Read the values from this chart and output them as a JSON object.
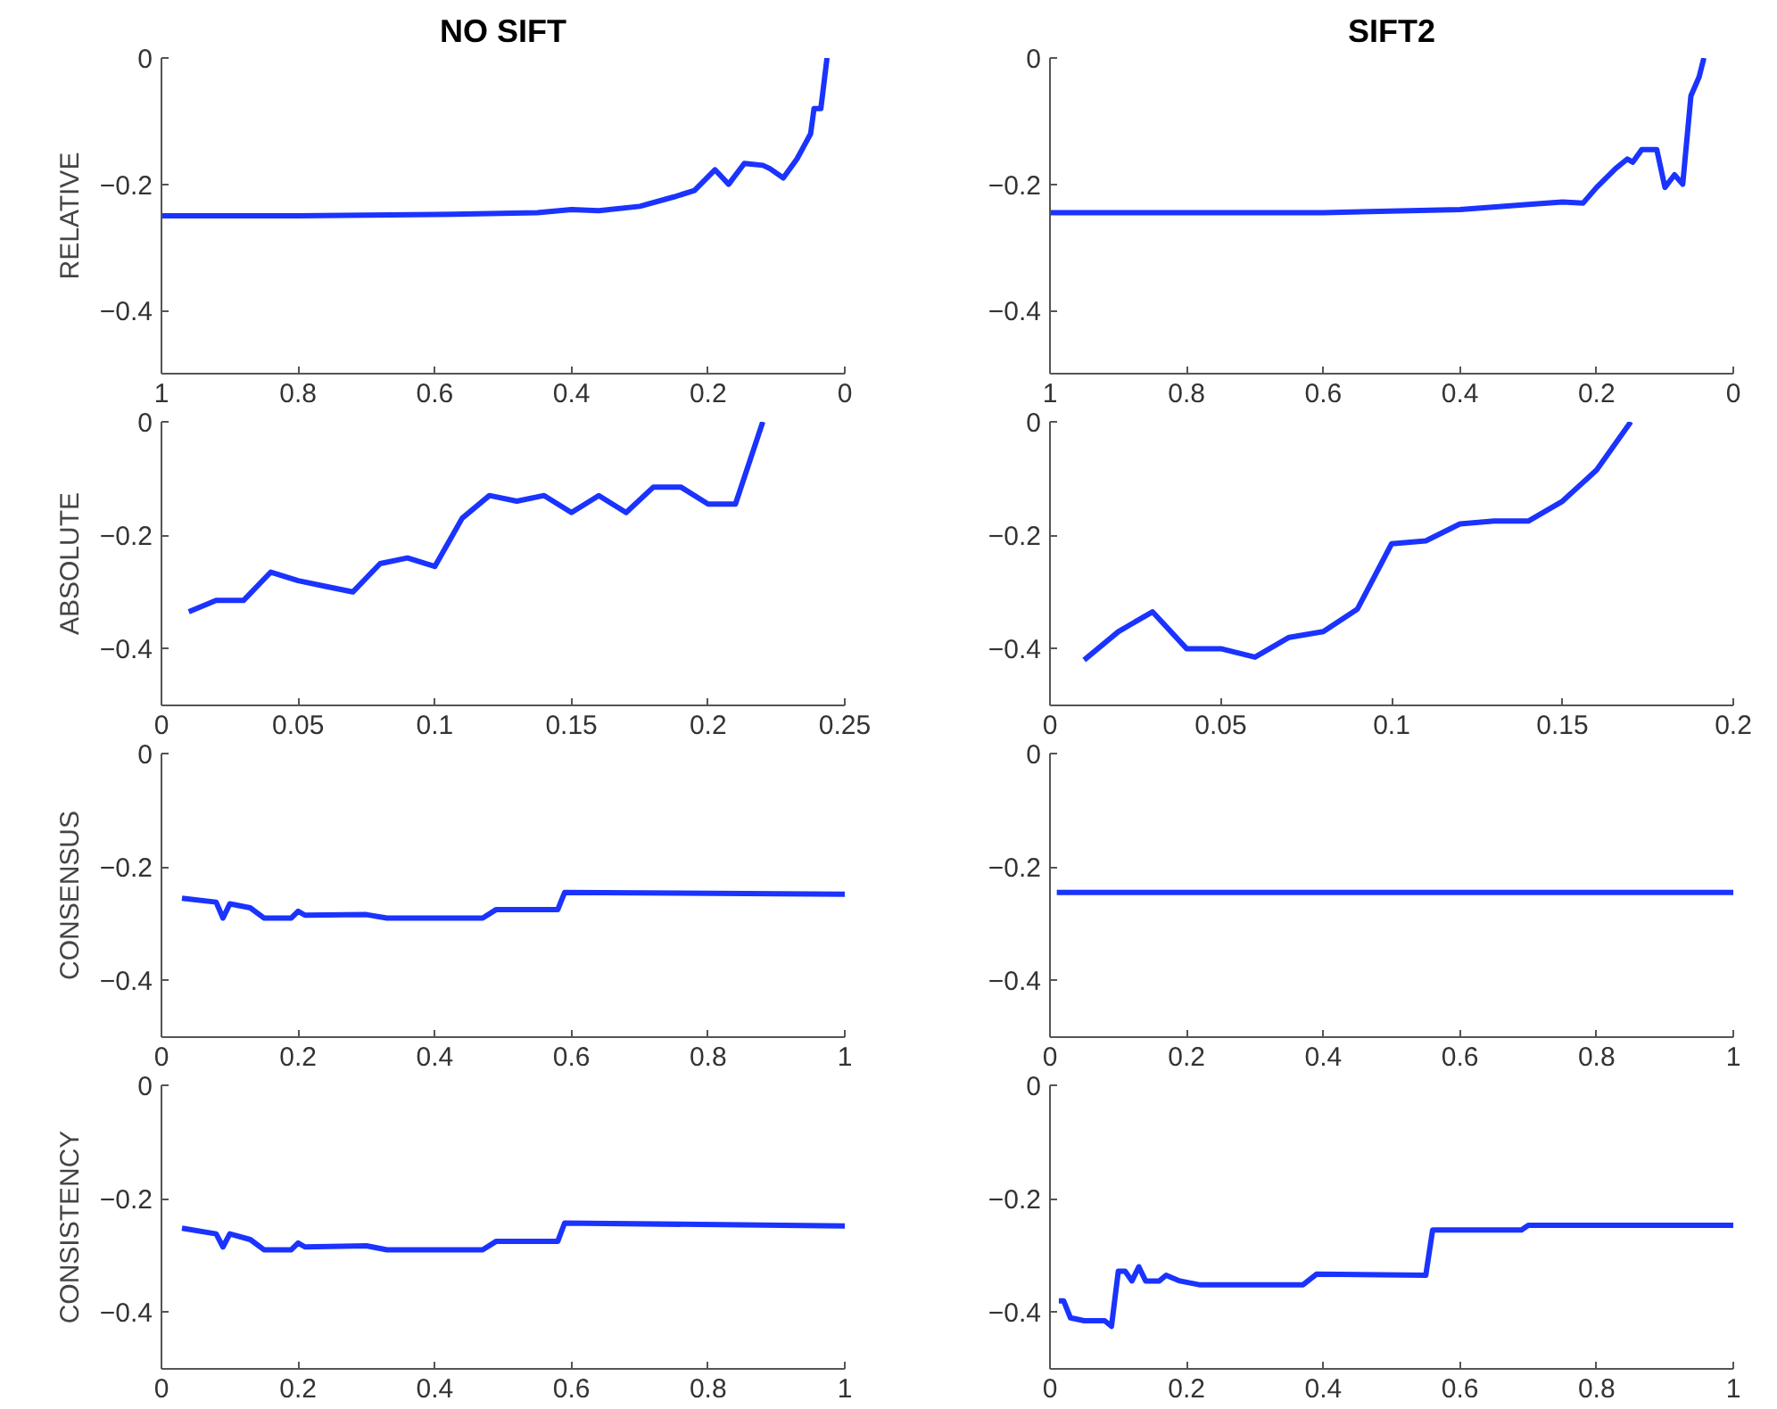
{
  "chart_data": [
    {
      "type": "line",
      "title": "NO SIFT",
      "ylabel": "RELATIVE",
      "xlim": [
        1,
        0
      ],
      "xticks": [
        1,
        0.8,
        0.6,
        0.4,
        0.2,
        0
      ],
      "ylim": [
        -0.5,
        0
      ],
      "yticks": [
        0,
        -0.2,
        -0.4
      ],
      "grid": false,
      "x": [
        1,
        0.8,
        0.6,
        0.45,
        0.4,
        0.36,
        0.3,
        0.25,
        0.22,
        0.19,
        0.17,
        0.147,
        0.12,
        0.11,
        0.09,
        0.07,
        0.06,
        0.05,
        0.045,
        0.035,
        0.026
      ],
      "series": [
        {
          "color": "#1a33ff",
          "values": [
            -0.25,
            -0.25,
            -0.248,
            -0.245,
            -0.24,
            -0.242,
            -0.235,
            -0.22,
            -0.21,
            -0.177,
            -0.2,
            -0.167,
            -0.17,
            -0.175,
            -0.19,
            -0.16,
            -0.14,
            -0.12,
            -0.08,
            -0.08,
            0
          ]
        }
      ]
    },
    {
      "type": "line",
      "title": "SIFT2",
      "xlim": [
        1,
        0
      ],
      "xticks": [
        1,
        0.8,
        0.6,
        0.4,
        0.2,
        0
      ],
      "ylim": [
        -0.5,
        0
      ],
      "yticks": [
        0,
        -0.2,
        -0.4
      ],
      "grid": false,
      "x": [
        1,
        0.6,
        0.4,
        0.3,
        0.25,
        0.22,
        0.2,
        0.172,
        0.155,
        0.147,
        0.134,
        0.112,
        0.1,
        0.086,
        0.074,
        0.062,
        0.05,
        0.043
      ],
      "series": [
        {
          "color": "#1a33ff",
          "values": [
            -0.245,
            -0.245,
            -0.24,
            -0.232,
            -0.228,
            -0.23,
            -0.205,
            -0.175,
            -0.16,
            -0.165,
            -0.145,
            -0.145,
            -0.205,
            -0.185,
            -0.2,
            -0.06,
            -0.03,
            0
          ]
        }
      ]
    },
    {
      "type": "line",
      "ylabel": "ABSOLUTE",
      "xlim": [
        0,
        0.25
      ],
      "xticks": [
        0,
        0.05,
        0.1,
        0.15,
        0.2,
        0.25
      ],
      "ylim": [
        -0.5,
        0
      ],
      "yticks": [
        0,
        -0.2,
        -0.4
      ],
      "grid": false,
      "x": [
        0.01,
        0.02,
        0.03,
        0.04,
        0.05,
        0.06,
        0.07,
        0.08,
        0.09,
        0.1,
        0.11,
        0.12,
        0.13,
        0.14,
        0.15,
        0.16,
        0.17,
        0.18,
        0.19,
        0.2,
        0.21,
        0.22
      ],
      "series": [
        {
          "color": "#1a33ff",
          "values": [
            -0.335,
            -0.315,
            -0.315,
            -0.265,
            -0.28,
            -0.29,
            -0.3,
            -0.25,
            -0.24,
            -0.255,
            -0.17,
            -0.13,
            -0.14,
            -0.13,
            -0.16,
            -0.13,
            -0.16,
            -0.115,
            -0.115,
            -0.145,
            -0.145,
            0
          ]
        }
      ]
    },
    {
      "type": "line",
      "xlim": [
        0,
        0.2
      ],
      "xticks": [
        0,
        0.05,
        0.1,
        0.15,
        0.2
      ],
      "ylim": [
        -0.5,
        0
      ],
      "yticks": [
        0,
        -0.2,
        -0.4
      ],
      "grid": false,
      "x": [
        0.01,
        0.02,
        0.03,
        0.04,
        0.05,
        0.06,
        0.07,
        0.08,
        0.09,
        0.1,
        0.11,
        0.12,
        0.13,
        0.14,
        0.15,
        0.16,
        0.17
      ],
      "series": [
        {
          "color": "#1a33ff",
          "values": [
            -0.42,
            -0.37,
            -0.335,
            -0.4,
            -0.4,
            -0.415,
            -0.38,
            -0.37,
            -0.33,
            -0.215,
            -0.21,
            -0.18,
            -0.175,
            -0.175,
            -0.14,
            -0.085,
            0
          ]
        }
      ]
    },
    {
      "type": "line",
      "ylabel": "CONSENSUS",
      "xlim": [
        0,
        1
      ],
      "xticks": [
        0,
        0.2,
        0.4,
        0.6,
        0.8,
        1
      ],
      "ylim": [
        -0.5,
        0
      ],
      "yticks": [
        0,
        -0.2,
        -0.4
      ],
      "grid": false,
      "x": [
        0.03,
        0.08,
        0.09,
        0.1,
        0.13,
        0.15,
        0.19,
        0.2,
        0.21,
        0.3,
        0.33,
        0.47,
        0.49,
        0.58,
        0.59,
        1
      ],
      "series": [
        {
          "color": "#1a33ff",
          "values": [
            -0.255,
            -0.262,
            -0.29,
            -0.265,
            -0.272,
            -0.29,
            -0.29,
            -0.278,
            -0.285,
            -0.284,
            -0.29,
            -0.29,
            -0.275,
            -0.275,
            -0.245,
            -0.248
          ]
        }
      ]
    },
    {
      "type": "line",
      "xlim": [
        0,
        1
      ],
      "xticks": [
        0,
        0.2,
        0.4,
        0.6,
        0.8,
        1
      ],
      "ylim": [
        -0.5,
        0
      ],
      "yticks": [
        0,
        -0.2,
        -0.4
      ],
      "grid": false,
      "x": [
        0.01,
        1
      ],
      "series": [
        {
          "color": "#1a33ff",
          "values": [
            -0.245,
            -0.245
          ]
        }
      ]
    },
    {
      "type": "line",
      "ylabel": "CONSISTENCY",
      "xlim": [
        0,
        1
      ],
      "xticks": [
        0,
        0.2,
        0.4,
        0.6,
        0.8,
        1
      ],
      "ylim": [
        -0.5,
        0
      ],
      "yticks": [
        0,
        -0.2,
        -0.4
      ],
      "grid": false,
      "x": [
        0.03,
        0.08,
        0.09,
        0.1,
        0.13,
        0.15,
        0.19,
        0.2,
        0.21,
        0.3,
        0.33,
        0.47,
        0.49,
        0.58,
        0.59,
        1
      ],
      "series": [
        {
          "color": "#1a33ff",
          "values": [
            -0.252,
            -0.262,
            -0.285,
            -0.262,
            -0.272,
            -0.29,
            -0.29,
            -0.278,
            -0.285,
            -0.283,
            -0.29,
            -0.29,
            -0.275,
            -0.275,
            -0.243,
            -0.248
          ]
        }
      ]
    },
    {
      "type": "line",
      "xlim": [
        0,
        1
      ],
      "xticks": [
        0,
        0.2,
        0.4,
        0.6,
        0.8,
        1
      ],
      "ylim": [
        -0.5,
        0
      ],
      "yticks": [
        0,
        -0.2,
        -0.4
      ],
      "grid": false,
      "x": [
        0.013,
        0.02,
        0.03,
        0.05,
        0.08,
        0.09,
        0.1,
        0.11,
        0.12,
        0.13,
        0.14,
        0.16,
        0.17,
        0.19,
        0.22,
        0.3,
        0.37,
        0.39,
        0.55,
        0.56,
        0.69,
        0.7,
        1
      ],
      "series": [
        {
          "color": "#1a33ff",
          "values": [
            -0.38,
            -0.38,
            -0.41,
            -0.415,
            -0.415,
            -0.425,
            -0.328,
            -0.328,
            -0.345,
            -0.32,
            -0.345,
            -0.345,
            -0.335,
            -0.345,
            -0.352,
            -0.352,
            -0.352,
            -0.333,
            -0.335,
            -0.255,
            -0.255,
            -0.247,
            -0.247
          ]
        }
      ]
    }
  ]
}
